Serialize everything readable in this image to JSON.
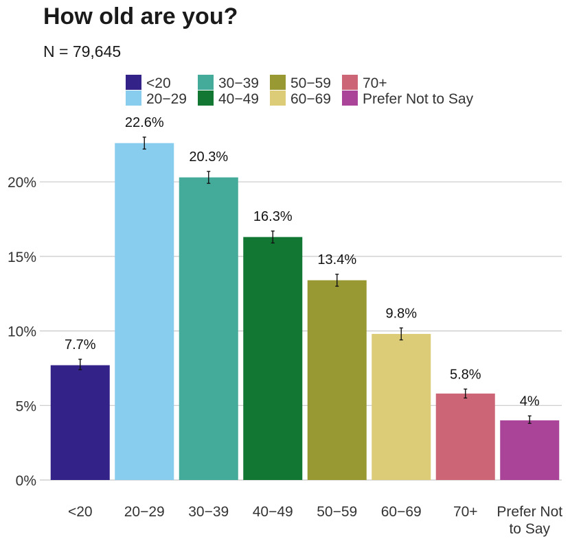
{
  "chart_data": {
    "type": "bar",
    "title": "How old are you?",
    "subtitle": "N = 79,645",
    "categories": [
      "<20",
      "20−29",
      "30−39",
      "40−49",
      "50−59",
      "60−69",
      "70+",
      "Prefer Not to Say"
    ],
    "tick_labels": [
      [
        "<20"
      ],
      [
        "20−29"
      ],
      [
        "30−39"
      ],
      [
        "40−49"
      ],
      [
        "50−59"
      ],
      [
        "60−69"
      ],
      [
        "70+"
      ],
      [
        "Prefer Not",
        "to Say"
      ]
    ],
    "values": [
      7.7,
      22.6,
      20.3,
      16.3,
      13.4,
      9.8,
      5.8,
      4.0
    ],
    "data_labels": [
      "7.7%",
      "22.6%",
      "20.3%",
      "16.3%",
      "13.4%",
      "9.8%",
      "5.8%",
      "4%"
    ],
    "error_bars": [
      [
        7.4,
        8.1
      ],
      [
        22.2,
        23.0
      ],
      [
        19.9,
        20.7
      ],
      [
        15.9,
        16.7
      ],
      [
        13.0,
        13.8
      ],
      [
        9.4,
        10.2
      ],
      [
        5.5,
        6.1
      ],
      [
        3.8,
        4.3
      ]
    ],
    "colors": [
      "#332288",
      "#88ccee",
      "#44aa99",
      "#117733",
      "#999933",
      "#ddcc77",
      "#cc6677",
      "#aa4499"
    ],
    "yticks": [
      0,
      5,
      10,
      15,
      20
    ],
    "ytick_labels": [
      "0%",
      "5%",
      "10%",
      "15%",
      "20%"
    ],
    "ylim": [
      0,
      23.5
    ],
    "grid": "horizontal",
    "legend_position": "top",
    "legend_rows": 2,
    "xlabel": "",
    "ylabel": ""
  }
}
